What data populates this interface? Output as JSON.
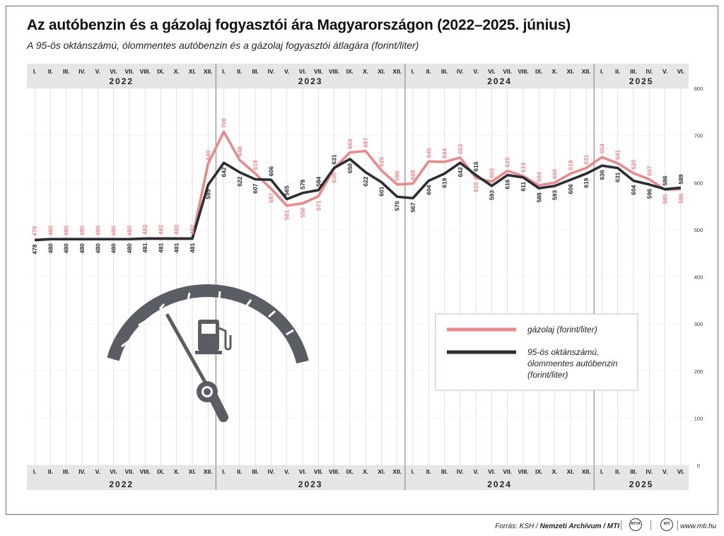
{
  "title": "Az autóbenzin és a gázolaj fogyasztói ára Magyarországon (2022–2025. június)",
  "subtitle": "A 95-ös oktánszámú, ólommentes autóbenzin és a gázolaj fogyasztói átlagára (forint/liter)",
  "footer": {
    "source_prefix": "Forrás: KSH / ",
    "source_bold": "Nemzeti Archívum / MTI",
    "logo1": "MTVA",
    "logo2": "MTI",
    "website": "www.mti.hu"
  },
  "colors": {
    "gazolaj": "#e8898b",
    "benzin": "#2a2d33",
    "band": "#e6e6e6",
    "grid": "#cfcfcf"
  },
  "icons": [
    "fuel-gauge-icon",
    "fuel-pump-icon"
  ],
  "chart_data": {
    "type": "line",
    "month_labels": [
      "I.",
      "II.",
      "III.",
      "IV.",
      "V.",
      "VI.",
      "VII.",
      "VIII.",
      "IX.",
      "X.",
      "XI.",
      "XII."
    ],
    "years": [
      {
        "label": "2022",
        "months": 12
      },
      {
        "label": "2023",
        "months": 12
      },
      {
        "label": "2024",
        "months": 12
      },
      {
        "label": "2025",
        "months": 6
      }
    ],
    "ylim": [
      0,
      800
    ],
    "yticks": [
      0,
      100,
      200,
      300,
      400,
      500,
      600,
      700,
      800
    ],
    "grid": true,
    "legend_position": "lower-right",
    "series": [
      {
        "name": "gázolaj (forint/liter)",
        "color": "#e8898b",
        "values": [
          479,
          480,
          480,
          480,
          480,
          480,
          480,
          482,
          482,
          482,
          482,
          640,
          708,
          648,
          619,
          587,
          551,
          556,
          571,
          630,
          664,
          667,
          626,
          596,
          598,
          645,
          644,
          653,
          610,
          602,
          625,
          614,
          594,
          600,
          619,
          631,
          654,
          641,
          620,
          607,
          585,
          586
        ]
      },
      {
        "name": "95-ös oktánszámú, ólommentes autóbenzin (forint/liter)",
        "legend_lines": [
          "95-ös oktánszámú,",
          "ólommentes autóbenzin",
          "(forint/liter)"
        ],
        "color": "#2a2d33",
        "values": [
          478,
          480,
          480,
          480,
          480,
          480,
          480,
          481,
          481,
          481,
          481,
          595,
          642,
          622,
          607,
          606,
          565,
          578,
          584,
          631,
          650,
          622,
          601,
          570,
          567,
          604,
          619,
          642,
          616,
          593,
          616,
          611,
          588,
          593,
          606,
          619,
          636,
          631,
          604,
          596,
          586,
          589
        ]
      }
    ]
  }
}
